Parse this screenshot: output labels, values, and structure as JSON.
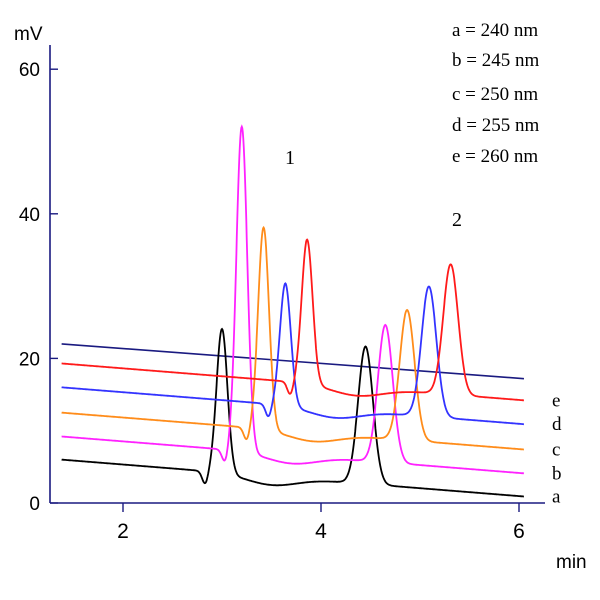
{
  "chart_data": {
    "type": "line",
    "y_unit": "mV",
    "x_unit": "min",
    "ylim": [
      0,
      66
    ],
    "xlim": [
      1.3,
      6.05
    ],
    "y_ticks": [
      "0",
      "20",
      "40",
      "60"
    ],
    "x_ticks": [
      "2",
      "4",
      "6"
    ],
    "grid": false,
    "legend": [
      "a = 240 nm",
      "b = 245 nm",
      "c = 250 nm",
      "d = 255 nm",
      "e = 260 nm"
    ],
    "legend_position": "top-right",
    "peak_labels": [
      "1",
      "2"
    ],
    "series": [
      {
        "name": "a",
        "color": "#000000",
        "offset": 0,
        "shift": 0,
        "base_start": 6,
        "base_end": 0.9,
        "peak1": 20,
        "peak2": 19
      },
      {
        "name": "b",
        "color": "#ff22ff",
        "offset": 3.2,
        "shift": 0.2,
        "base_start": 6,
        "base_end": 0.9,
        "peak1": 45,
        "peak2": 19
      },
      {
        "name": "c",
        "color": "#ff8c1a",
        "offset": 6.5,
        "shift": 0.42,
        "base_start": 6,
        "base_end": 0.9,
        "peak1": 28,
        "peak2": 18
      },
      {
        "name": "d",
        "color": "#3333ff",
        "offset": 10,
        "shift": 0.64,
        "base_start": 6,
        "base_end": 0.9,
        "peak1": 17,
        "peak2": 18
      },
      {
        "name": "e",
        "color": "#ff1a1a",
        "offset": 13.3,
        "shift": 0.86,
        "base_start": 6,
        "base_end": 0.9,
        "peak1": 20,
        "peak2": 18
      }
    ],
    "reference_line": {
      "color": "#1a1a80",
      "x": [
        1.38,
        6.05
      ],
      "y": [
        22,
        17.2
      ]
    },
    "peak_times": [
      3.0,
      4.45
    ]
  }
}
